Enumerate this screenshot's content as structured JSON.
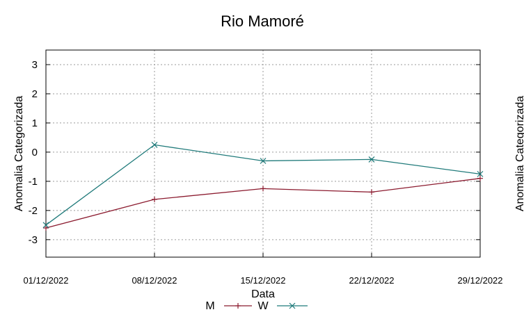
{
  "chart_data": {
    "type": "line",
    "title": "Rio Mamoré",
    "xlabel": "Data",
    "ylabel": "Anomalia Categorizada",
    "right_ylabel_partial": "Anomalia Categorizada",
    "categories": [
      "01/12/2022",
      "08/12/2022",
      "15/12/2022",
      "22/12/2022",
      "29/12/2022"
    ],
    "ylim": [
      -3.6,
      3.5
    ],
    "yticks": [
      3,
      2,
      1,
      0,
      -1,
      -2,
      -3
    ],
    "ytick_labels": [
      "3",
      "2",
      "1",
      "0",
      "-1",
      "-2",
      "-3"
    ],
    "grid": true,
    "legend_position": "bottom-center",
    "series": [
      {
        "name": "M",
        "color": "#8b1a2e",
        "marker": "plus",
        "values": [
          -2.6,
          -1.62,
          -1.25,
          -1.37,
          -0.9
        ]
      },
      {
        "name": "W",
        "color": "#1f7a7a",
        "marker": "x",
        "values": [
          -2.5,
          0.25,
          -0.3,
          -0.25,
          -0.75
        ]
      }
    ]
  }
}
